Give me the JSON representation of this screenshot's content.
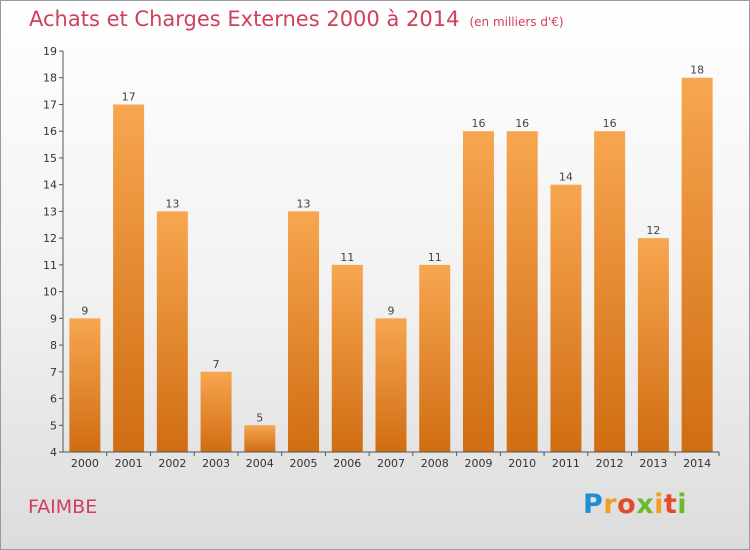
{
  "title": "Achats et Charges Externes 2000 à 2014",
  "unit": "(en milliers d'€)",
  "commune": "FAIMBE",
  "logo": {
    "text": "Proxiti",
    "colors": [
      "#1e8fd6",
      "#f0a020",
      "#e24b2a",
      "#6cba2f"
    ]
  },
  "colors": {
    "bar_light": "#f7a650",
    "bar_dark": "#d06d12",
    "title": "#d0405a",
    "axis": "#555555"
  },
  "chart_data": {
    "type": "bar",
    "title": "Achats et Charges Externes 2000 à 2014",
    "unit": "(en milliers d'€)",
    "categories": [
      "2000",
      "2001",
      "2002",
      "2003",
      "2004",
      "2005",
      "2006",
      "2007",
      "2008",
      "2009",
      "2010",
      "2011",
      "2012",
      "2013",
      "2014"
    ],
    "values": [
      9,
      17,
      13,
      7,
      5,
      13,
      11,
      9,
      11,
      16,
      16,
      14,
      16,
      12,
      18
    ],
    "ylim": [
      4,
      19
    ],
    "yticks": [
      4,
      5,
      6,
      7,
      8,
      9,
      10,
      11,
      12,
      13,
      14,
      15,
      16,
      17,
      18,
      19
    ],
    "grid": false,
    "legend": "none"
  }
}
